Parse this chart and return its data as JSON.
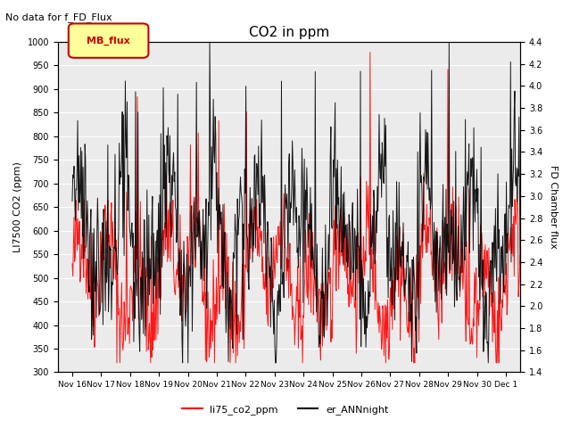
{
  "title": "CO2 in ppm",
  "top_left_text": "No data for f_FD_Flux",
  "ylabel_left": "LI7500 CO2 (ppm)",
  "ylabel_right": "FD Chamber flux",
  "ylim_left": [
    300,
    1000
  ],
  "ylim_right": [
    1.4,
    4.4
  ],
  "yticks_left": [
    300,
    350,
    400,
    450,
    500,
    550,
    600,
    650,
    700,
    750,
    800,
    850,
    900,
    950,
    1000
  ],
  "yticks_right": [
    1.4,
    1.6,
    1.8,
    2.0,
    2.2,
    2.4,
    2.6,
    2.8,
    3.0,
    3.2,
    3.4,
    3.6,
    3.8,
    4.0,
    4.2,
    4.4
  ],
  "xticklabels": [
    "Nov 16",
    "Nov 17",
    "Nov 18",
    "Nov 19",
    "Nov 20",
    "Nov 21",
    "Nov 22",
    "Nov 23",
    "Nov 24",
    "Nov 25",
    "Nov 26",
    "Nov 27",
    "Nov 28",
    "Nov 29",
    "Nov 30",
    "Dec 1"
  ],
  "legend_box_label": "MB_flux",
  "legend_box_color": "#ffff99",
  "legend_box_border": "#cc0000",
  "legend_line1_color": "#ff0000",
  "legend_line1_label": "li75_co2_ppm",
  "legend_line2_color": "#000000",
  "legend_line2_label": "er_ANNnight",
  "bg_color": "#ebebeb",
  "grid_color": "#ffffff",
  "line_red_color": "#ff0000",
  "line_black_color": "#000000",
  "seed": 42
}
